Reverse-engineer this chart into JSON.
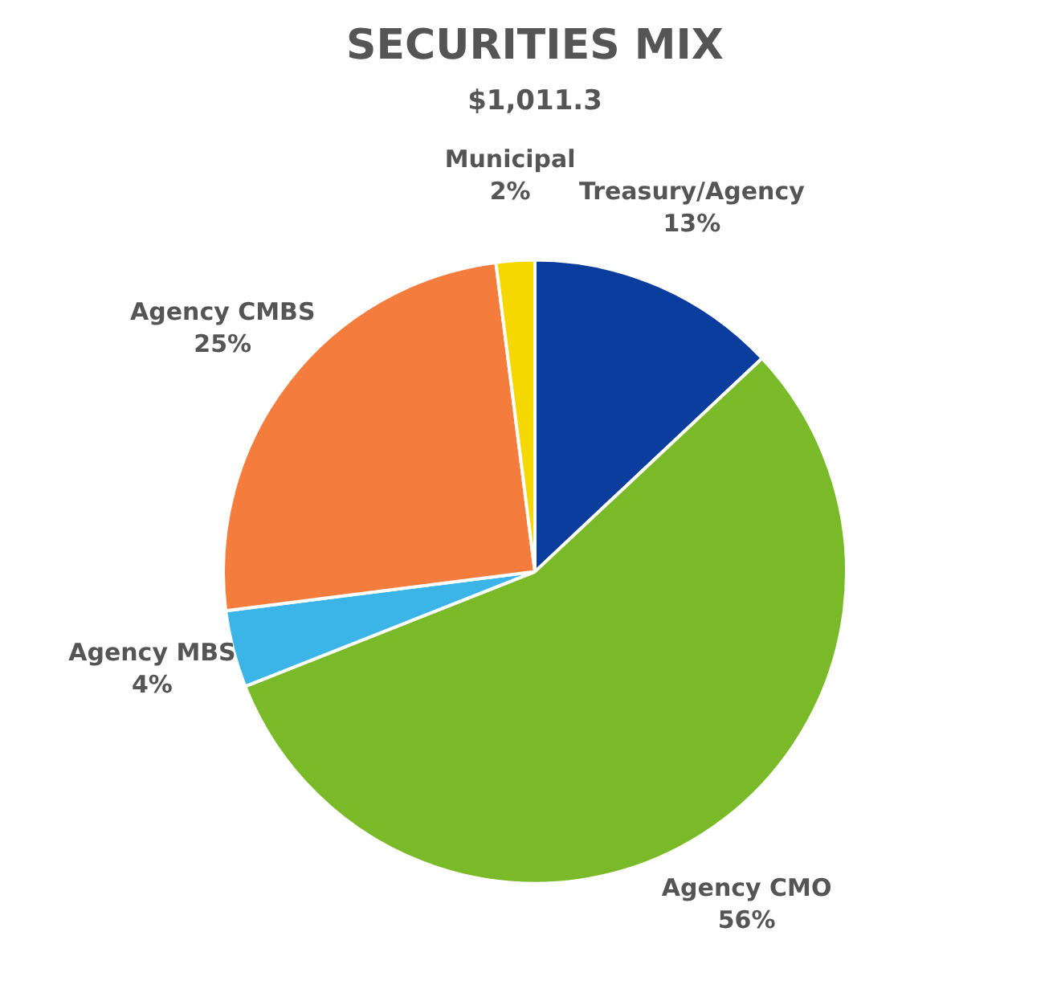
{
  "chart_data": {
    "type": "pie",
    "title": "SECURITIES MIX",
    "subtitle": "$1,011.3",
    "categories": [
      "Treasury/Agency",
      "Agency CMO",
      "Agency MBS",
      "Agency CMBS",
      "Municipal"
    ],
    "values": [
      13,
      56,
      4,
      25,
      2
    ],
    "colors": [
      "#0a3d9e",
      "#7aba28",
      "#3bb5e8",
      "#f47c3c",
      "#f5d800"
    ],
    "value_labels": [
      "13%",
      "56%",
      "4%",
      "25%",
      "2%"
    ],
    "legend": false
  }
}
